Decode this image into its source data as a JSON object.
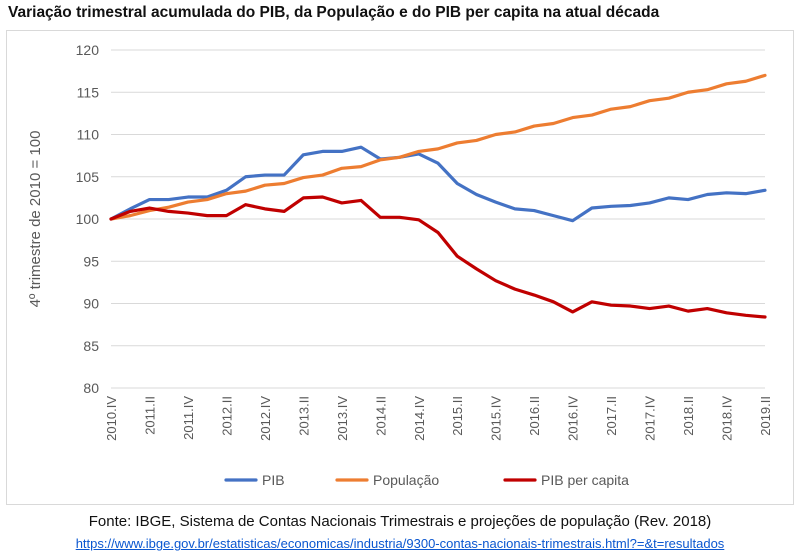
{
  "title": "Variação trimestral acumulada do PIB, da População e do PIB per capita na atual década",
  "source_text": "Fonte: IBGE, Sistema de Contas Nacionais Trimestrais e projeções de população (Rev. 2018)",
  "source_link": "https://www.ibge.gov.br/estatisticas/economicas/industria/9300-contas-nacionais-trimestrais.html?=&t=resultados",
  "chart_data": {
    "type": "line",
    "title": "",
    "xlabel": "",
    "ylabel": "4º trimestre de 2010 = 100",
    "ylim": [
      80,
      120
    ],
    "yticks": [
      80,
      85,
      90,
      95,
      100,
      105,
      110,
      115,
      120
    ],
    "grid": true,
    "legend_position": "bottom",
    "x": [
      "2010.IV",
      "2011.I",
      "2011.II",
      "2011.III",
      "2011.IV",
      "2012.I",
      "2012.II",
      "2012.III",
      "2012.IV",
      "2013.I",
      "2013.II",
      "2013.III",
      "2013.IV",
      "2014.I",
      "2014.II",
      "2014.III",
      "2014.IV",
      "2015.I",
      "2015.II",
      "2015.III",
      "2015.IV",
      "2016.I",
      "2016.II",
      "2016.III",
      "2016.IV",
      "2017.I",
      "2017.II",
      "2017.III",
      "2017.IV",
      "2018.I",
      "2018.II",
      "2018.III",
      "2018.IV",
      "2019.I",
      "2019.II"
    ],
    "tick_labels": [
      "2010.IV",
      "2011.II",
      "2011.IV",
      "2012.II",
      "2012.IV",
      "2013.II",
      "2013.IV",
      "2014.II",
      "2014.IV",
      "2015.II",
      "2015.IV",
      "2016.II",
      "2016.IV",
      "2017.II",
      "2017.IV",
      "2018.II",
      "2018.IV",
      "2019.II"
    ],
    "series": [
      {
        "name": "PIB",
        "color": "#4472C4",
        "values": [
          100,
          101.2,
          102.3,
          102.3,
          102.6,
          102.6,
          103.4,
          105.0,
          105.2,
          105.2,
          107.6,
          108.0,
          108.0,
          108.5,
          107.1,
          107.3,
          107.7,
          106.6,
          104.2,
          102.9,
          102.0,
          101.2,
          101.0,
          100.4,
          99.8,
          101.3,
          101.5,
          101.6,
          101.9,
          102.5,
          102.3,
          102.9,
          103.1,
          103.0,
          103.4
        ]
      },
      {
        "name": "População",
        "color": "#ED7D31",
        "values": [
          100,
          100.4,
          101.0,
          101.4,
          102.0,
          102.3,
          103.0,
          103.3,
          104.0,
          104.2,
          104.9,
          105.2,
          106.0,
          106.2,
          107.0,
          107.3,
          108.0,
          108.3,
          109.0,
          109.3,
          110.0,
          110.3,
          111.0,
          111.3,
          112.0,
          112.3,
          113.0,
          113.3,
          114.0,
          114.3,
          115.0,
          115.3,
          116.0,
          116.3,
          117.0
        ]
      },
      {
        "name": "PIB per capita",
        "color": "#C00000",
        "values": [
          100,
          100.9,
          101.3,
          100.9,
          100.7,
          100.4,
          100.4,
          101.7,
          101.2,
          100.9,
          102.5,
          102.6,
          101.9,
          102.2,
          100.2,
          100.2,
          99.9,
          98.4,
          95.6,
          94.1,
          92.7,
          91.7,
          91.0,
          90.2,
          89.0,
          90.2,
          89.8,
          89.7,
          89.4,
          89.7,
          89.1,
          89.4,
          88.9,
          88.6,
          88.4
        ]
      }
    ]
  }
}
